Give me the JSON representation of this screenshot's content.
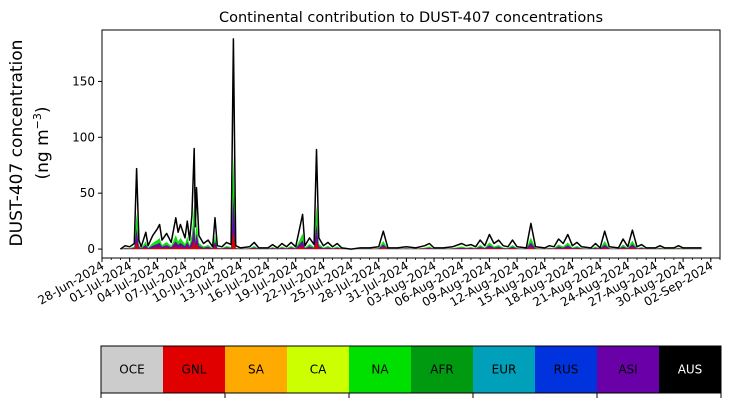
{
  "chart_data": {
    "type": "area",
    "title": "Continental contribution to DUST-407 concentrations",
    "ylabel_line1": "DUST-407 concentration",
    "ylabel_line2_prefix": "(ng m",
    "ylabel_line2_sup": "−3",
    "ylabel_line2_suffix": ")",
    "ylim": [
      -8,
      196
    ],
    "yticks": [
      0,
      50,
      100,
      150
    ],
    "xlim": [
      "2024-06-28",
      "2024-09-03"
    ],
    "xtick_labels": [
      "28-Jun-2024",
      "01-Jul-2024",
      "04-Jul-2024",
      "07-Jul-2024",
      "10-Jul-2024",
      "13-Jul-2024",
      "16-Jul-2024",
      "19-Jul-2024",
      "22-Jul-2024",
      "25-Jul-2024",
      "28-Jul-2024",
      "31-Jul-2024",
      "03-Aug-2024",
      "06-Aug-2024",
      "09-Aug-2024",
      "12-Aug-2024",
      "15-Aug-2024",
      "18-Aug-2024",
      "21-Aug-2024",
      "24-Aug-2024",
      "27-Aug-2024",
      "30-Aug-2024",
      "02-Sep-2024"
    ],
    "total_series": {
      "name": "total",
      "color": "#000000",
      "points": [
        [
          "2024-06-30",
          0
        ],
        [
          "2024-06-30T12:00",
          3
        ],
        [
          "2024-07-01",
          2
        ],
        [
          "2024-07-01T12:00",
          5
        ],
        [
          "2024-07-01T18:00",
          72
        ],
        [
          "2024-07-02",
          8
        ],
        [
          "2024-07-02T06:00",
          2
        ],
        [
          "2024-07-02T18:00",
          15
        ],
        [
          "2024-07-03",
          3
        ],
        [
          "2024-07-03T12:00",
          12
        ],
        [
          "2024-07-04",
          18
        ],
        [
          "2024-07-04T06:00",
          22
        ],
        [
          "2024-07-04T12:00",
          8
        ],
        [
          "2024-07-05",
          14
        ],
        [
          "2024-07-05T12:00",
          6
        ],
        [
          "2024-07-06",
          28
        ],
        [
          "2024-07-06T06:00",
          15
        ],
        [
          "2024-07-06T12:00",
          22
        ],
        [
          "2024-07-07",
          10
        ],
        [
          "2024-07-07T06:00",
          25
        ],
        [
          "2024-07-07T12:00",
          8
        ],
        [
          "2024-07-07T18:00",
          30
        ],
        [
          "2024-07-08",
          90
        ],
        [
          "2024-07-08T03:00",
          20
        ],
        [
          "2024-07-08T06:00",
          55
        ],
        [
          "2024-07-08T12:00",
          12
        ],
        [
          "2024-07-09",
          5
        ],
        [
          "2024-07-09T12:00",
          8
        ],
        [
          "2024-07-10",
          2
        ],
        [
          "2024-07-10T06:00",
          28
        ],
        [
          "2024-07-10T12:00",
          3
        ],
        [
          "2024-07-11",
          2
        ],
        [
          "2024-07-11T12:00",
          6
        ],
        [
          "2024-07-12",
          4
        ],
        [
          "2024-07-12T06:00",
          188
        ],
        [
          "2024-07-12T12:00",
          3
        ],
        [
          "2024-07-13",
          1
        ],
        [
          "2024-07-14",
          2
        ],
        [
          "2024-07-14T12:00",
          6
        ],
        [
          "2024-07-15",
          1
        ],
        [
          "2024-07-16",
          1
        ],
        [
          "2024-07-16T12:00",
          4
        ],
        [
          "2024-07-17",
          1
        ],
        [
          "2024-07-17T12:00",
          5
        ],
        [
          "2024-07-18",
          2
        ],
        [
          "2024-07-18T12:00",
          6
        ],
        [
          "2024-07-19",
          2
        ],
        [
          "2024-07-19T18:00",
          31
        ],
        [
          "2024-07-20",
          3
        ],
        [
          "2024-07-20T12:00",
          10
        ],
        [
          "2024-07-21",
          4
        ],
        [
          "2024-07-21T06:00",
          89
        ],
        [
          "2024-07-21T12:00",
          10
        ],
        [
          "2024-07-22",
          3
        ],
        [
          "2024-07-22T12:00",
          6
        ],
        [
          "2024-07-23",
          2
        ],
        [
          "2024-07-23T12:00",
          5
        ],
        [
          "2024-07-24",
          1
        ],
        [
          "2024-07-25",
          0
        ],
        [
          "2024-07-26",
          1
        ],
        [
          "2024-07-27",
          1
        ],
        [
          "2024-07-28",
          2
        ],
        [
          "2024-07-28T12:00",
          16
        ],
        [
          "2024-07-29",
          1
        ],
        [
          "2024-07-30",
          1
        ],
        [
          "2024-07-31",
          2
        ],
        [
          "2024-08-01",
          1
        ],
        [
          "2024-08-02",
          3
        ],
        [
          "2024-08-02T12:00",
          5
        ],
        [
          "2024-08-03",
          1
        ],
        [
          "2024-08-04",
          1
        ],
        [
          "2024-08-05",
          2
        ],
        [
          "2024-08-06",
          5
        ],
        [
          "2024-08-06T12:00",
          3
        ],
        [
          "2024-08-07",
          4
        ],
        [
          "2024-08-07T12:00",
          2
        ],
        [
          "2024-08-08",
          8
        ],
        [
          "2024-08-08T12:00",
          3
        ],
        [
          "2024-08-09",
          13
        ],
        [
          "2024-08-09T12:00",
          5
        ],
        [
          "2024-08-10",
          8
        ],
        [
          "2024-08-10T12:00",
          3
        ],
        [
          "2024-08-11",
          2
        ],
        [
          "2024-08-11T12:00",
          8
        ],
        [
          "2024-08-12",
          2
        ],
        [
          "2024-08-13",
          1
        ],
        [
          "2024-08-13T12:00",
          23
        ],
        [
          "2024-08-14",
          2
        ],
        [
          "2024-08-15",
          1
        ],
        [
          "2024-08-15T12:00",
          3
        ],
        [
          "2024-08-16",
          2
        ],
        [
          "2024-08-16T12:00",
          9
        ],
        [
          "2024-08-17",
          5
        ],
        [
          "2024-08-17T12:00",
          13
        ],
        [
          "2024-08-18",
          3
        ],
        [
          "2024-08-18T12:00",
          6
        ],
        [
          "2024-08-19",
          2
        ],
        [
          "2024-08-20",
          1
        ],
        [
          "2024-08-20T12:00",
          5
        ],
        [
          "2024-08-21",
          1
        ],
        [
          "2024-08-21T12:00",
          16
        ],
        [
          "2024-08-22",
          2
        ],
        [
          "2024-08-23",
          1
        ],
        [
          "2024-08-23T12:00",
          9
        ],
        [
          "2024-08-24",
          2
        ],
        [
          "2024-08-24T12:00",
          17
        ],
        [
          "2024-08-25",
          2
        ],
        [
          "2024-08-25T12:00",
          4
        ],
        [
          "2024-08-26",
          1
        ],
        [
          "2024-08-27",
          1
        ],
        [
          "2024-08-27T12:00",
          3
        ],
        [
          "2024-08-28",
          1
        ],
        [
          "2024-08-29",
          1
        ],
        [
          "2024-08-29T12:00",
          3
        ],
        [
          "2024-08-30",
          1
        ],
        [
          "2024-08-31",
          1
        ],
        [
          "2024-09-01",
          1
        ]
      ]
    },
    "legend": {
      "placement": "bottom",
      "entries": [
        {
          "label": "OCE",
          "color": "#cccccc"
        },
        {
          "label": "GNL",
          "color": "#e00000"
        },
        {
          "label": "SA",
          "color": "#ffaa00"
        },
        {
          "label": "CA",
          "color": "#ccff00"
        },
        {
          "label": "NA",
          "color": "#00e000"
        },
        {
          "label": "AFR",
          "color": "#009a10"
        },
        {
          "label": "EUR",
          "color": "#00a0bb"
        },
        {
          "label": "RUS",
          "color": "#0033dd"
        },
        {
          "label": "ASI",
          "color": "#6a00a8"
        },
        {
          "label": "AUS",
          "color": "#000000"
        }
      ]
    },
    "grid": false
  }
}
